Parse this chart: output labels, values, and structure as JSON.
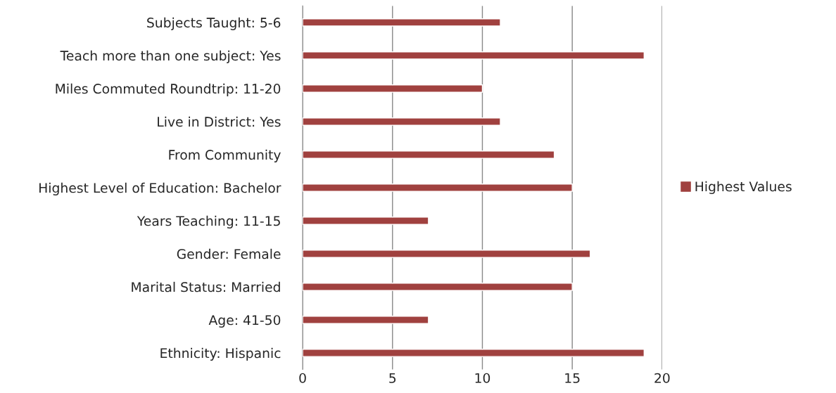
{
  "chart_data": {
    "type": "bar",
    "orientation": "horizontal",
    "categories": [
      "Subjects Taught: 5-6",
      "Teach more than one subject: Yes",
      "Miles Commuted Roundtrip: 11-20",
      "Live in District: Yes",
      "From Community",
      "Highest Level of Education: Bachelor",
      "Years Teaching: 11-15",
      "Gender: Female",
      "Marital Status: Married",
      "Age: 41-50",
      "Ethnicity: Hispanic"
    ],
    "series": [
      {
        "name": "Highest Values",
        "color": "#a0413f",
        "values": [
          11,
          19,
          10,
          11,
          14,
          15,
          7,
          16,
          15,
          7,
          19
        ]
      }
    ],
    "xlim": [
      0,
      20
    ],
    "xticks": [
      0,
      5,
      10,
      15,
      20
    ],
    "grid": "x",
    "legend": "right"
  }
}
